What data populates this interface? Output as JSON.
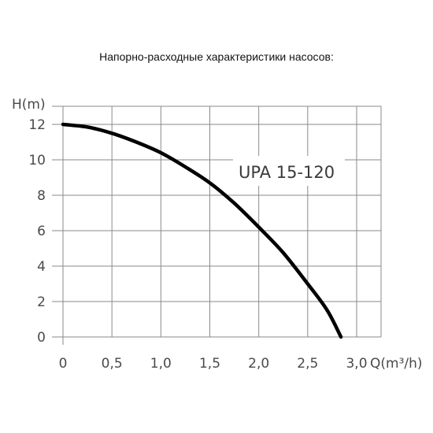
{
  "page": {
    "heading": "Напорно-расходные характеристики насосов:"
  },
  "chart_data": {
    "type": "line",
    "xlabel": "Q(m³/h)",
    "ylabel": "H(m)",
    "xlim": [
      0,
      3.0
    ],
    "ylim": [
      0,
      12
    ],
    "x_ticks": [
      0,
      0.5,
      1.0,
      1.5,
      2.0,
      2.5,
      3.0
    ],
    "x_tick_labels": [
      "0",
      "0,5",
      "1,0",
      "1,5",
      "2,0",
      "2,5",
      "3,0"
    ],
    "y_ticks": [
      0,
      2,
      4,
      6,
      8,
      10,
      12
    ],
    "y_tick_labels": [
      "0",
      "2",
      "4",
      "6",
      "8",
      "10",
      "12"
    ],
    "grid": true,
    "series": [
      {
        "name": "UPA 15-120",
        "color": "#000000",
        "x": [
          0,
          0.25,
          0.5,
          0.75,
          1.0,
          1.25,
          1.5,
          1.75,
          2.0,
          2.25,
          2.5,
          2.7,
          2.84
        ],
        "y": [
          12.0,
          11.85,
          11.5,
          11.0,
          10.4,
          9.6,
          8.7,
          7.55,
          6.2,
          4.75,
          3.0,
          1.5,
          0.0
        ]
      }
    ],
    "colors": {
      "grid": "#8a8a8a",
      "axis": "#8a8a8a",
      "curve": "#000000",
      "text": "#4a4a4a"
    }
  }
}
